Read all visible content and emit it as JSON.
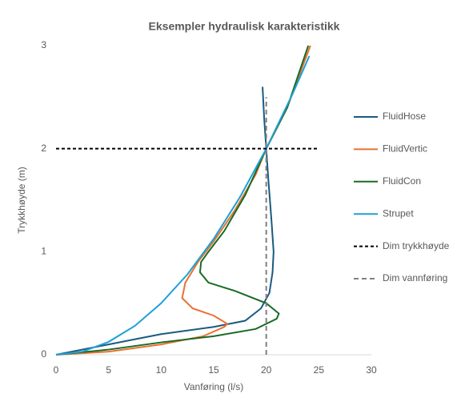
{
  "chart_data": {
    "type": "line",
    "title": "Eksempler hydraulisk karakteristikk",
    "x_label": "Vanføring (l/s)",
    "y_label": "Trykkhøyde (m)",
    "xlim": [
      0,
      30
    ],
    "xticks": [
      0,
      5,
      10,
      15,
      20,
      25,
      30
    ],
    "ylim": [
      0,
      3
    ],
    "yticks": [
      0,
      1,
      2,
      3
    ],
    "grid": false,
    "legend": "right",
    "series": [
      {
        "name": "FluidHose",
        "color": "#1b5a80",
        "line_style": "solid",
        "x": [
          0,
          5,
          10,
          15,
          18,
          19.5,
          20.3,
          20.6,
          20.7,
          20.5,
          20.2,
          20,
          19.8,
          19.65
        ],
        "values": [
          0,
          0.1,
          0.2,
          0.27,
          0.33,
          0.45,
          0.6,
          0.8,
          1.0,
          1.3,
          1.7,
          2.0,
          2.3,
          2.6
        ]
      },
      {
        "name": "FluidVertic",
        "color": "#e97132",
        "line_style": "solid",
        "x": [
          0,
          5,
          10,
          14,
          16,
          16.3,
          15,
          13,
          12,
          12.3,
          13.5,
          15,
          17,
          19,
          20,
          22,
          24.2
        ],
        "values": [
          0,
          0.03,
          0.1,
          0.18,
          0.27,
          0.3,
          0.38,
          0.45,
          0.55,
          0.7,
          0.9,
          1.1,
          1.4,
          1.75,
          2.0,
          2.4,
          3.0
        ]
      },
      {
        "name": "FluidCon",
        "color": "#196b24",
        "line_style": "solid",
        "x": [
          0,
          5,
          10,
          15,
          19,
          21,
          21.2,
          20,
          17,
          14.5,
          13.7,
          13.8,
          14.5,
          16,
          18,
          20,
          22,
          24
        ],
        "values": [
          0,
          0.05,
          0.12,
          0.18,
          0.25,
          0.35,
          0.4,
          0.5,
          0.62,
          0.7,
          0.8,
          0.9,
          1.0,
          1.2,
          1.55,
          2.0,
          2.4,
          3.0
        ]
      },
      {
        "name": "Strupet",
        "color": "#1ea0d6",
        "line_style": "solid",
        "x": [
          0,
          2.5,
          5,
          7.5,
          10,
          12.5,
          15,
          17.5,
          20,
          22.5,
          24.1
        ],
        "values": [
          0,
          0.03,
          0.125,
          0.28,
          0.5,
          0.78,
          1.125,
          1.53,
          2.0,
          2.53,
          2.9
        ]
      },
      {
        "name": "Dim trykkhøyde",
        "color": "#000000",
        "line_style": "dashed",
        "x": [
          0,
          25
        ],
        "values": [
          2,
          2
        ]
      },
      {
        "name": "Dim vannføring",
        "color": "#808080",
        "line_style": "dashed",
        "x": [
          20,
          20
        ],
        "values": [
          0,
          2.5
        ]
      }
    ]
  }
}
